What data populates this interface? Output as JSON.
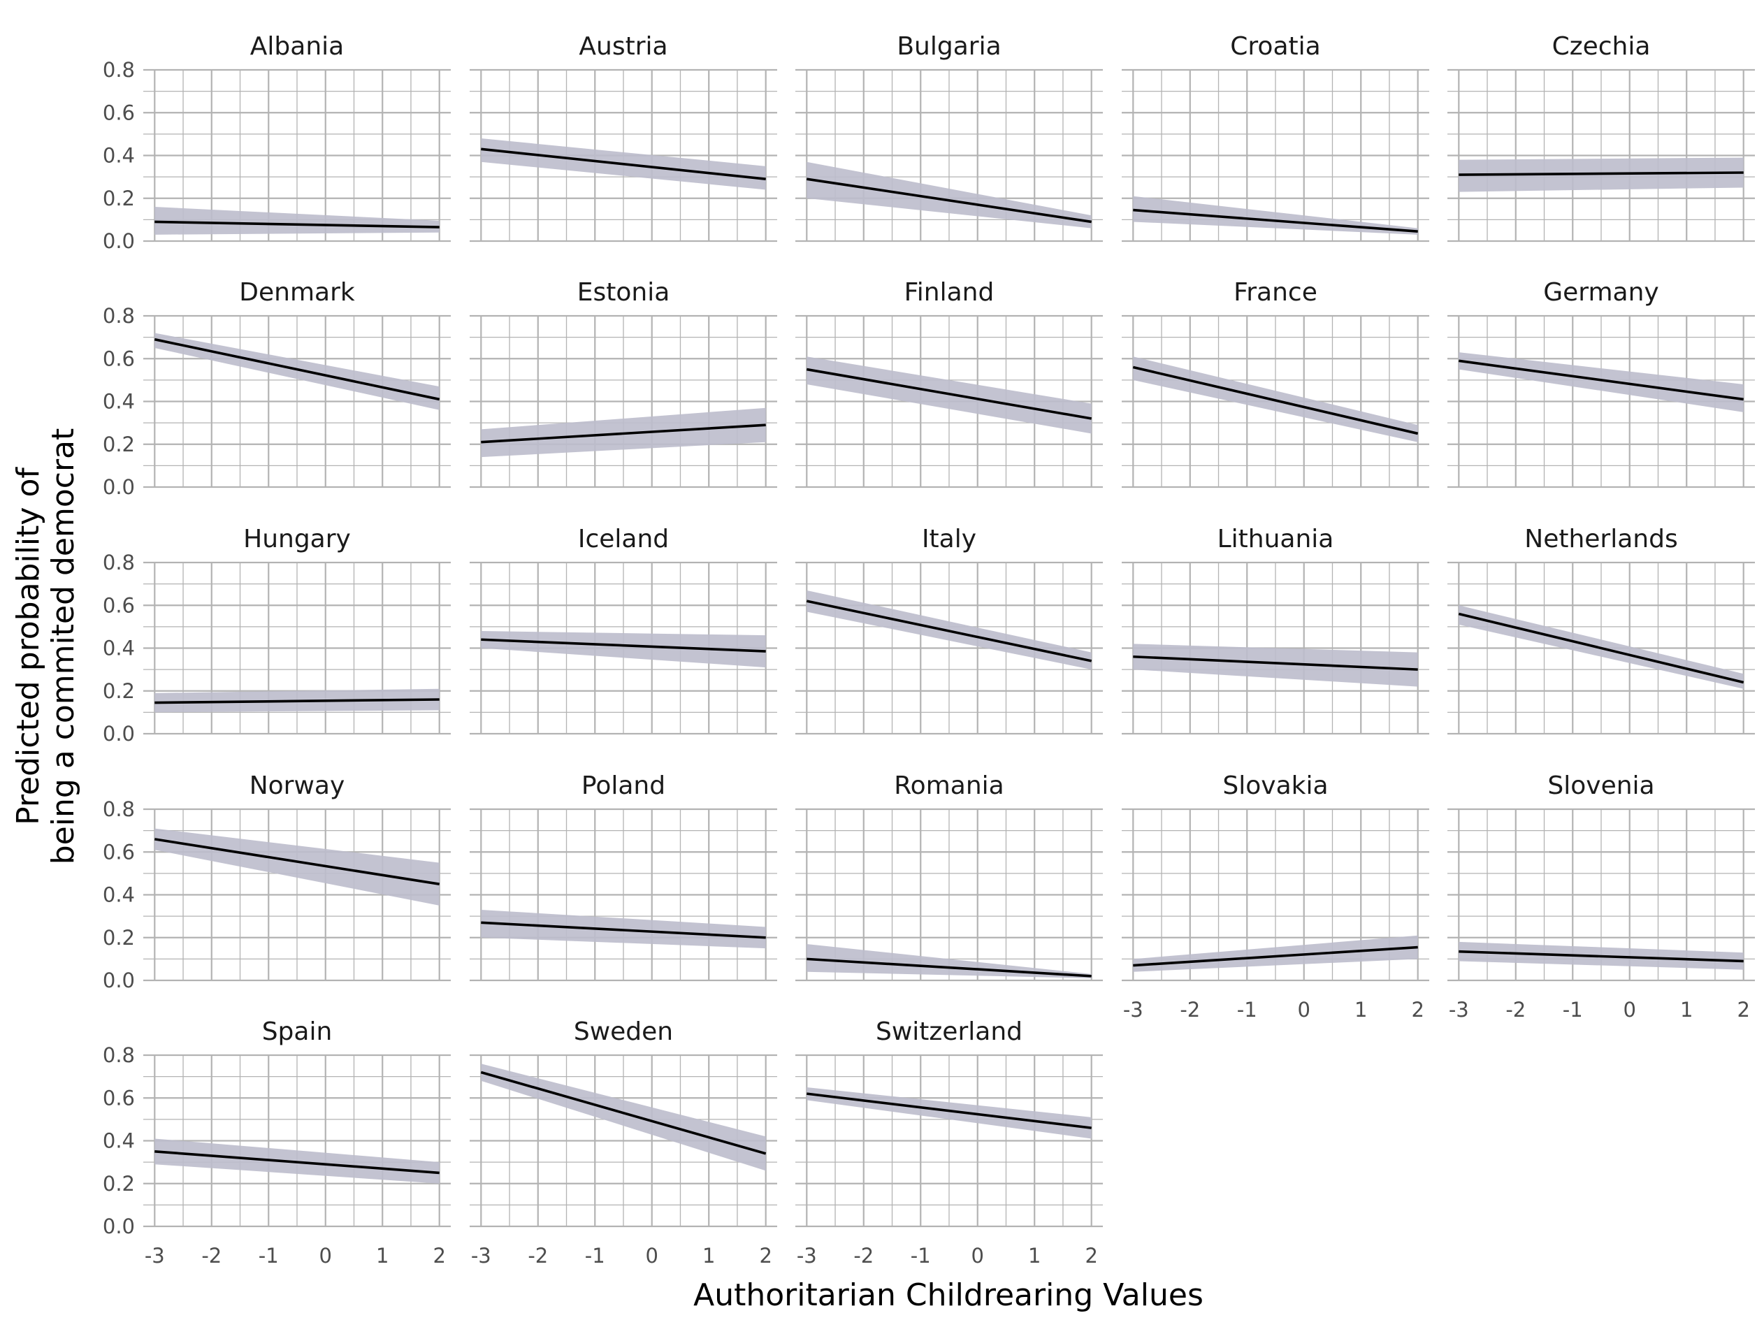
{
  "chart_data": {
    "type": "line",
    "subtype": "faceted-line-with-confidence-band",
    "xlabel": "Authoritarian Childrearing Values",
    "ylabel_lines": [
      "Predicted probability of",
      "being a commited democrat"
    ],
    "xlim": [
      -3.2,
      2.2
    ],
    "ylim": [
      0,
      0.8
    ],
    "x_ticks": [
      -3,
      -2,
      -1,
      0,
      1,
      2
    ],
    "x_tick_labels": [
      "-3",
      "-2",
      "-1",
      "0",
      "1",
      "2"
    ],
    "y_ticks": [
      0,
      0.2,
      0.4,
      0.6,
      0.8
    ],
    "y_tick_labels": [
      "0.0",
      "0.2",
      "0.4",
      "0.6",
      "0.8"
    ],
    "grid": true,
    "columns": 5,
    "band_color": "#bdbdcc",
    "line_color": "#000000",
    "panels": [
      {
        "name": "Albania",
        "x": [
          -3,
          2
        ],
        "fit": [
          0.09,
          0.065
        ],
        "lower": [
          0.03,
          0.04
        ],
        "upper": [
          0.16,
          0.095
        ]
      },
      {
        "name": "Austria",
        "x": [
          -3,
          2
        ],
        "fit": [
          0.43,
          0.29
        ],
        "lower": [
          0.37,
          0.24
        ],
        "upper": [
          0.48,
          0.35
        ]
      },
      {
        "name": "Bulgaria",
        "x": [
          -3,
          2
        ],
        "fit": [
          0.29,
          0.09
        ],
        "lower": [
          0.2,
          0.06
        ],
        "upper": [
          0.37,
          0.12
        ]
      },
      {
        "name": "Croatia",
        "x": [
          -3,
          2
        ],
        "fit": [
          0.145,
          0.045
        ],
        "lower": [
          0.09,
          0.03
        ],
        "upper": [
          0.21,
          0.06
        ]
      },
      {
        "name": "Czechia",
        "x": [
          -3,
          2
        ],
        "fit": [
          0.31,
          0.32
        ],
        "lower": [
          0.23,
          0.25
        ],
        "upper": [
          0.38,
          0.39
        ]
      },
      {
        "name": "Denmark",
        "x": [
          -3,
          2
        ],
        "fit": [
          0.69,
          0.41
        ],
        "lower": [
          0.65,
          0.36
        ],
        "upper": [
          0.72,
          0.47
        ]
      },
      {
        "name": "Estonia",
        "x": [
          -3,
          2
        ],
        "fit": [
          0.21,
          0.29
        ],
        "lower": [
          0.14,
          0.21
        ],
        "upper": [
          0.27,
          0.37
        ]
      },
      {
        "name": "Finland",
        "x": [
          -3,
          2
        ],
        "fit": [
          0.55,
          0.32
        ],
        "lower": [
          0.48,
          0.25
        ],
        "upper": [
          0.61,
          0.39
        ]
      },
      {
        "name": "France",
        "x": [
          -3,
          2
        ],
        "fit": [
          0.56,
          0.25
        ],
        "lower": [
          0.5,
          0.21
        ],
        "upper": [
          0.61,
          0.29
        ]
      },
      {
        "name": "Germany",
        "x": [
          -3,
          2
        ],
        "fit": [
          0.59,
          0.41
        ],
        "lower": [
          0.55,
          0.35
        ],
        "upper": [
          0.63,
          0.48
        ]
      },
      {
        "name": "Hungary",
        "x": [
          -3,
          2
        ],
        "fit": [
          0.145,
          0.16
        ],
        "lower": [
          0.1,
          0.11
        ],
        "upper": [
          0.19,
          0.21
        ]
      },
      {
        "name": "Iceland",
        "x": [
          -3,
          2
        ],
        "fit": [
          0.44,
          0.385
        ],
        "lower": [
          0.4,
          0.31
        ],
        "upper": [
          0.48,
          0.46
        ]
      },
      {
        "name": "Italy",
        "x": [
          -3,
          2
        ],
        "fit": [
          0.62,
          0.34
        ],
        "lower": [
          0.57,
          0.3
        ],
        "upper": [
          0.67,
          0.38
        ]
      },
      {
        "name": "Lithuania",
        "x": [
          -3,
          2
        ],
        "fit": [
          0.36,
          0.3
        ],
        "lower": [
          0.3,
          0.22
        ],
        "upper": [
          0.42,
          0.38
        ]
      },
      {
        "name": "Netherlands",
        "x": [
          -3,
          2
        ],
        "fit": [
          0.56,
          0.24
        ],
        "lower": [
          0.51,
          0.21
        ],
        "upper": [
          0.6,
          0.28
        ]
      },
      {
        "name": "Norway",
        "x": [
          -3,
          2
        ],
        "fit": [
          0.66,
          0.45
        ],
        "lower": [
          0.61,
          0.35
        ],
        "upper": [
          0.71,
          0.55
        ]
      },
      {
        "name": "Poland",
        "x": [
          -3,
          2
        ],
        "fit": [
          0.27,
          0.2
        ],
        "lower": [
          0.2,
          0.15
        ],
        "upper": [
          0.33,
          0.25
        ]
      },
      {
        "name": "Romania",
        "x": [
          -3,
          2
        ],
        "fit": [
          0.1,
          0.02
        ],
        "lower": [
          0.04,
          0.01
        ],
        "upper": [
          0.17,
          0.03
        ]
      },
      {
        "name": "Slovakia",
        "x": [
          -3,
          2
        ],
        "fit": [
          0.07,
          0.155
        ],
        "lower": [
          0.04,
          0.1
        ],
        "upper": [
          0.1,
          0.21
        ]
      },
      {
        "name": "Slovenia",
        "x": [
          -3,
          2
        ],
        "fit": [
          0.135,
          0.09
        ],
        "lower": [
          0.09,
          0.05
        ],
        "upper": [
          0.18,
          0.13
        ]
      },
      {
        "name": "Spain",
        "x": [
          -3,
          2
        ],
        "fit": [
          0.35,
          0.25
        ],
        "lower": [
          0.29,
          0.2
        ],
        "upper": [
          0.41,
          0.3
        ]
      },
      {
        "name": "Sweden",
        "x": [
          -3,
          2
        ],
        "fit": [
          0.72,
          0.34
        ],
        "lower": [
          0.68,
          0.26
        ],
        "upper": [
          0.76,
          0.42
        ]
      },
      {
        "name": "Switzerland",
        "x": [
          -3,
          2
        ],
        "fit": [
          0.62,
          0.46
        ],
        "lower": [
          0.59,
          0.41
        ],
        "upper": [
          0.65,
          0.51
        ]
      }
    ]
  }
}
